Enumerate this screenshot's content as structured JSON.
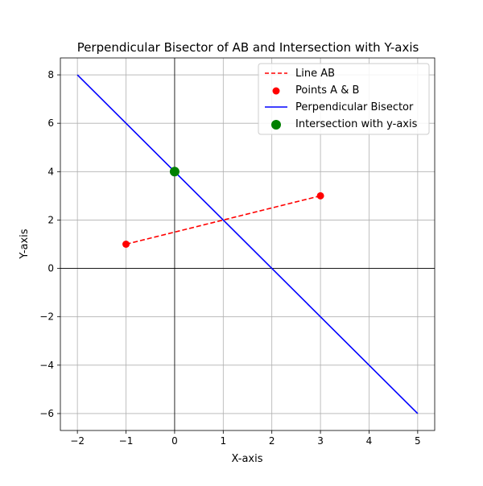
{
  "chart_data": {
    "type": "line",
    "title": "Perpendicular Bisector of AB and Intersection with Y-axis",
    "xlabel": "X-axis",
    "ylabel": "Y-axis",
    "xlim": [
      -2.35,
      5.35
    ],
    "ylim": [
      -6.7,
      8.7
    ],
    "x_ticks": [
      -2,
      -1,
      0,
      1,
      2,
      3,
      4,
      5
    ],
    "x_tick_labels": [
      "−2",
      "−1",
      "0",
      "1",
      "2",
      "3",
      "4",
      "5"
    ],
    "y_ticks": [
      -6,
      -4,
      -2,
      0,
      2,
      4,
      6,
      8
    ],
    "y_tick_labels": [
      "−6",
      "−4",
      "−2",
      "0",
      "2",
      "4",
      "6",
      "8"
    ],
    "grid": true,
    "axis_lines_at_zero": true,
    "legend_position": "top-right",
    "series": [
      {
        "name": "Line AB",
        "kind": "dashed-line",
        "color": "#ff0000",
        "x": [
          -1,
          3
        ],
        "y": [
          1,
          3
        ]
      },
      {
        "name": "Points A & B",
        "kind": "scatter",
        "color": "#ff0000",
        "x": [
          -1,
          3
        ],
        "y": [
          1,
          3
        ]
      },
      {
        "name": "Perpendicular Bisector",
        "kind": "line",
        "color": "#0000ff",
        "x": [
          -2,
          5
        ],
        "y": [
          8,
          -6
        ]
      },
      {
        "name": "Intersection with y-axis",
        "kind": "scatter-large",
        "color": "#008000",
        "x": [
          0
        ],
        "y": [
          4
        ]
      }
    ]
  }
}
